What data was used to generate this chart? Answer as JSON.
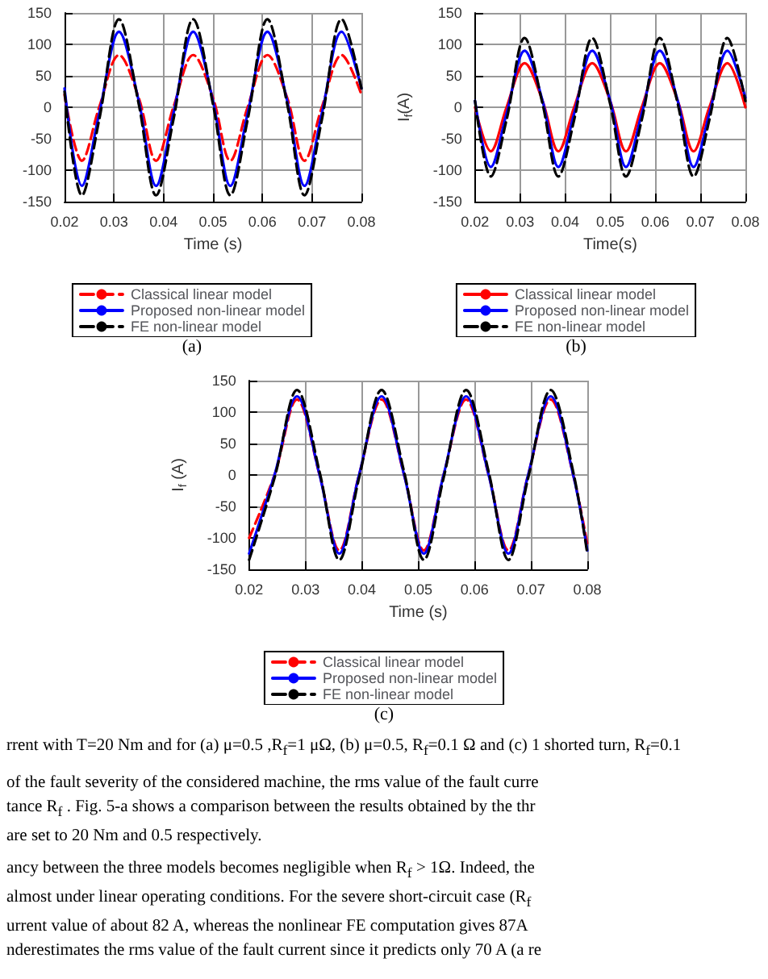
{
  "chart_data": [
    {
      "type": "line",
      "xlabel": "Time (s)",
      "annotations": [
        "(a)"
      ],
      "x": [
        0.02,
        0.0235,
        0.027,
        0.031,
        0.035,
        0.0385,
        0.042,
        0.046,
        0.05,
        0.0535,
        0.057,
        0.061,
        0.065,
        0.0685,
        0.072,
        0.076,
        0.08
      ],
      "series": [
        {
          "name": "Classical linear model",
          "color": "#ff0000",
          "line_style": "dashed",
          "values": [
            20,
            -85,
            0,
            83,
            15,
            -85,
            0,
            83,
            15,
            -85,
            0,
            83,
            15,
            -85,
            0,
            83,
            20
          ]
        },
        {
          "name": "Proposed non-linear model",
          "color": "#0000ff",
          "line_style": "solid",
          "values": [
            30,
            -125,
            -10,
            120,
            10,
            -125,
            -10,
            120,
            10,
            -125,
            -10,
            120,
            10,
            -125,
            -10,
            120,
            30
          ]
        },
        {
          "name": "FE non-linear model",
          "color": "#000000",
          "line_style": "dashed",
          "values": [
            25,
            -140,
            -20,
            140,
            5,
            -140,
            -20,
            140,
            5,
            -140,
            -20,
            140,
            5,
            -140,
            -20,
            140,
            30
          ]
        }
      ],
      "xlim": [
        0.02,
        0.08
      ],
      "xticks": [
        0.02,
        0.03,
        0.04,
        0.05,
        0.06,
        0.07,
        0.08
      ],
      "ylim": [
        -150,
        150
      ],
      "yticks": [
        -150,
        -100,
        -50,
        0,
        50,
        100,
        150
      ],
      "grid": true,
      "legend": "bottom",
      "marker": "none"
    },
    {
      "type": "line",
      "xlabel": "Time(s)",
      "ylabel": "I$_{f}$(A)",
      "annotations": [
        "(b)"
      ],
      "x": [
        0.02,
        0.0235,
        0.027,
        0.031,
        0.035,
        0.0385,
        0.042,
        0.046,
        0.05,
        0.0535,
        0.057,
        0.061,
        0.065,
        0.0685,
        0.072,
        0.076,
        0.08
      ],
      "series": [
        {
          "name": "Classical linear model",
          "color": "#ff0000",
          "line_style": "solid",
          "values": [
            0,
            -70,
            0,
            70,
            10,
            -70,
            0,
            70,
            10,
            -70,
            0,
            70,
            10,
            -70,
            0,
            70,
            0
          ]
        },
        {
          "name": "Proposed non-linear model",
          "color": "#0000ff",
          "line_style": "solid",
          "values": [
            10,
            -95,
            -10,
            90,
            10,
            -95,
            -10,
            90,
            10,
            -95,
            -10,
            90,
            10,
            -95,
            -10,
            90,
            15
          ]
        },
        {
          "name": "FE non-linear model",
          "color": "#000000",
          "line_style": "dashed",
          "values": [
            10,
            -110,
            -20,
            110,
            5,
            -110,
            -20,
            110,
            5,
            -110,
            -20,
            110,
            5,
            -110,
            -20,
            110,
            10
          ]
        }
      ],
      "xlim": [
        0.02,
        0.08
      ],
      "xticks": [
        0.02,
        0.03,
        0.04,
        0.05,
        0.06,
        0.07,
        0.08
      ],
      "ylim": [
        -150,
        150
      ],
      "yticks": [
        -150,
        -100,
        -50,
        0,
        50,
        100,
        150
      ],
      "grid": true,
      "legend": "bottom",
      "marker": "none"
    },
    {
      "type": "line",
      "xlabel": "Time (s)",
      "ylabel": "I$_{f}$ (A)",
      "annotations": [
        "(c)"
      ],
      "x": [
        0.02,
        0.0245,
        0.0285,
        0.0325,
        0.036,
        0.0395,
        0.0435,
        0.0475,
        0.051,
        0.0545,
        0.0585,
        0.0625,
        0.066,
        0.0695,
        0.0735,
        0.0775,
        0.08
      ],
      "series": [
        {
          "name": "Classical linear model",
          "color": "#ff0000",
          "line_style": "dashed",
          "values": [
            -100,
            0,
            120,
            0,
            -120,
            0,
            120,
            0,
            -120,
            0,
            120,
            0,
            -120,
            0,
            120,
            0,
            -110
          ]
        },
        {
          "name": "Proposed non-linear model",
          "color": "#0000ff",
          "line_style": "solid",
          "values": [
            -125,
            0,
            125,
            0,
            -125,
            0,
            125,
            0,
            -125,
            0,
            125,
            0,
            -125,
            0,
            125,
            0,
            -120
          ]
        },
        {
          "name": "FE non-linear model",
          "color": "#000000",
          "line_style": "dashed",
          "values": [
            -135,
            -5,
            135,
            5,
            -135,
            -5,
            135,
            5,
            -135,
            -5,
            135,
            5,
            -135,
            -5,
            135,
            5,
            -125
          ]
        }
      ],
      "xlim": [
        0.02,
        0.08
      ],
      "xticks": [
        0.02,
        0.03,
        0.04,
        0.05,
        0.06,
        0.07,
        0.08
      ],
      "ylim": [
        -150,
        150
      ],
      "yticks": [
        -150,
        -100,
        -50,
        0,
        50,
        100,
        150
      ],
      "grid": true,
      "legend": "bottom",
      "marker": "none"
    },
    {
      "type": "other",
      "annotations": [
        "rrent with T=20 Nm and for (a) μ=0.5 ,R$_{f}$=1 μΩ,  (b) μ=0.5, R$_{f}$=0.1 Ω and (c) 1 shorted turn, R$_{f}$=0.1",
        "of the fault severity of the considered machine, the rms value of the fault curre",
        "tance R$_{f}$ . Fig. 5-a shows a comparison between the results obtained by the thr",
        "are set to 20 Nm and 0.5 respectively.",
        "ancy between the three models becomes negligible when R$_{f}$ > 1Ω. Indeed, the",
        "almost under linear operating conditions. For the severe short-circuit case (R$_{f}$",
        "urrent value of about 82 A, whereas the nonlinear FE computation gives 87A",
        "nderestimates the rms value of the fault current since it predicts only 70 A (a re"
      ]
    }
  ]
}
